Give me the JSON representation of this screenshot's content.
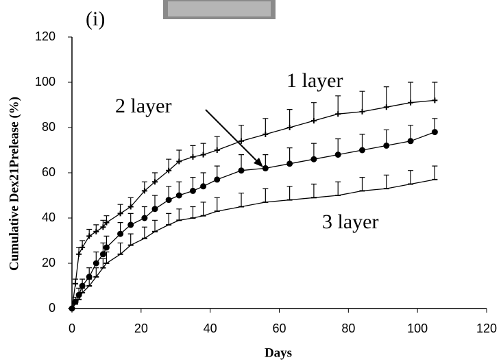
{
  "chart_data": {
    "type": "line",
    "title": "(i)",
    "x_label": "Days",
    "y_label": "Cumulative Dex21Prelease (%)",
    "x": [
      0,
      1,
      2,
      3,
      5,
      7,
      9,
      10,
      14,
      17,
      21,
      24,
      28,
      31,
      35,
      38,
      42,
      49,
      56,
      63,
      70,
      77,
      84,
      91,
      98,
      105
    ],
    "series": [
      {
        "name": "1 layer",
        "color": "#000000",
        "marker": "plus",
        "values": [
          0,
          11,
          24,
          27,
          32,
          34,
          36,
          38,
          42,
          45,
          52,
          56,
          61,
          65,
          67,
          68,
          70,
          74,
          77,
          80,
          83,
          86,
          87,
          89,
          91,
          92
        ],
        "errors": [
          0,
          2,
          3,
          3,
          3,
          3,
          3,
          3,
          4,
          4,
          4,
          4,
          5,
          5,
          5,
          5,
          6,
          7,
          7,
          8,
          8,
          8,
          9,
          9,
          9,
          8
        ]
      },
      {
        "name": "2 layer",
        "color": "#000000",
        "marker": "circle",
        "values": [
          0,
          3,
          6,
          10,
          14,
          20,
          24,
          27,
          33,
          37,
          40,
          44,
          48,
          50,
          52,
          54,
          57,
          61,
          62,
          64,
          66,
          68,
          70,
          72,
          74,
          78
        ],
        "errors": [
          0,
          2,
          3,
          3,
          4,
          5,
          5,
          5,
          5,
          5,
          5,
          6,
          6,
          6,
          6,
          6,
          6,
          7,
          6,
          7,
          7,
          7,
          7,
          7,
          7,
          6
        ]
      },
      {
        "name": "3 layer",
        "color": "#000000",
        "marker": "dash",
        "values": [
          0,
          2,
          4,
          7,
          10,
          14,
          18,
          20,
          24,
          28,
          31,
          34,
          37,
          39,
          40,
          41,
          43,
          45,
          47,
          48,
          49,
          50,
          52,
          53,
          55,
          57
        ],
        "errors": [
          0,
          1,
          2,
          2,
          3,
          4,
          4,
          5,
          5,
          5,
          5,
          5,
          5,
          5,
          5,
          6,
          6,
          6,
          6,
          6,
          6,
          6,
          6,
          6,
          6,
          6
        ]
      }
    ],
    "xlim": [
      0,
      120
    ],
    "xticks": [
      0,
      20,
      40,
      60,
      80,
      100,
      120
    ],
    "ylim": [
      0,
      120
    ],
    "yticks": [
      0,
      20,
      40,
      60,
      80,
      100,
      120
    ],
    "grid": false
  }
}
